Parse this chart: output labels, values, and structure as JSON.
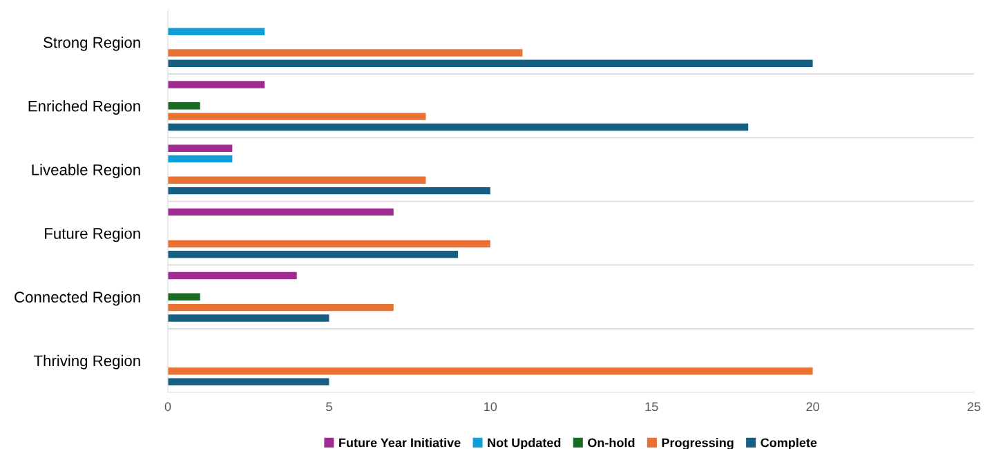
{
  "chart_data": {
    "type": "bar",
    "orientation": "horizontal",
    "categories": [
      "Strong Region",
      "Enriched Region",
      "Liveable Region",
      "Future Region",
      "Connected Region",
      "Thriving Region"
    ],
    "series": [
      {
        "name": "Future Year Initiative",
        "color": "#a02b93",
        "values": [
          null,
          3,
          2,
          7,
          4,
          null
        ]
      },
      {
        "name": "Not Updated",
        "color": "#0f9ed5",
        "values": [
          3,
          null,
          2,
          null,
          null,
          null
        ]
      },
      {
        "name": "On-hold",
        "color": "#196b24",
        "values": [
          null,
          1,
          null,
          null,
          1,
          null
        ]
      },
      {
        "name": "Progressing",
        "color": "#e97132",
        "values": [
          11,
          8,
          8,
          10,
          7,
          20
        ]
      },
      {
        "name": "Complete",
        "color": "#156082",
        "values": [
          20,
          18,
          10,
          9,
          5,
          5
        ]
      }
    ],
    "xlim": [
      0,
      25
    ],
    "xticks": [
      0,
      5,
      10,
      15,
      20,
      25
    ],
    "grid": "y",
    "legend": "bottom"
  }
}
